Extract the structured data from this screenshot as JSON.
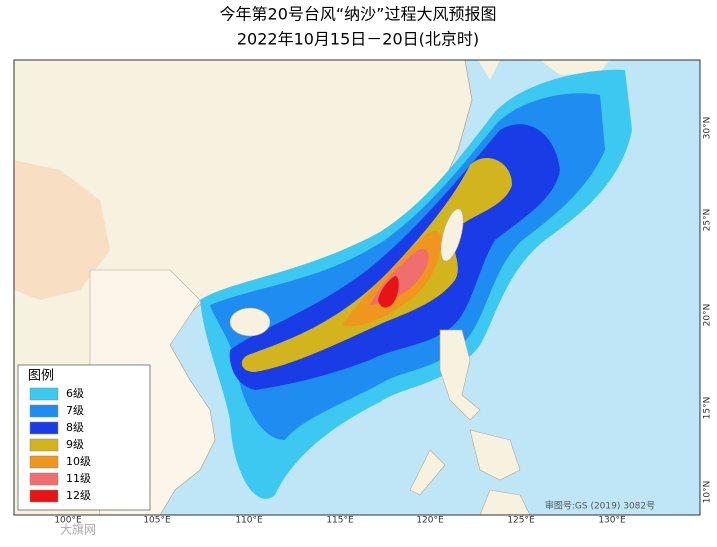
{
  "header": {
    "title": "今年第20号台风“纳沙”过程大风预报图",
    "subtitle": "2022年10月15日－20日(北京时)"
  },
  "legend": {
    "title": "图例",
    "items": [
      {
        "label": "6级",
        "color": "#3cc8f0"
      },
      {
        "label": "7级",
        "color": "#1e8cf0"
      },
      {
        "label": "8级",
        "color": "#1a3ce6"
      },
      {
        "label": "9级",
        "color": "#d2b41e"
      },
      {
        "label": "10级",
        "color": "#f0961e"
      },
      {
        "label": "11级",
        "color": "#f06e6e"
      },
      {
        "label": "12级",
        "color": "#e61414"
      }
    ]
  },
  "map": {
    "longitude_labels": [
      "100°E",
      "105°E",
      "110°E",
      "115°E",
      "120°E",
      "125°E",
      "130°E"
    ],
    "latitude_labels": [
      "30°N",
      "25°N",
      "20°N",
      "15°N",
      "10°N"
    ],
    "review_number": "审图号:GS (2019) 3082号"
  },
  "watermark": "大旗网"
}
